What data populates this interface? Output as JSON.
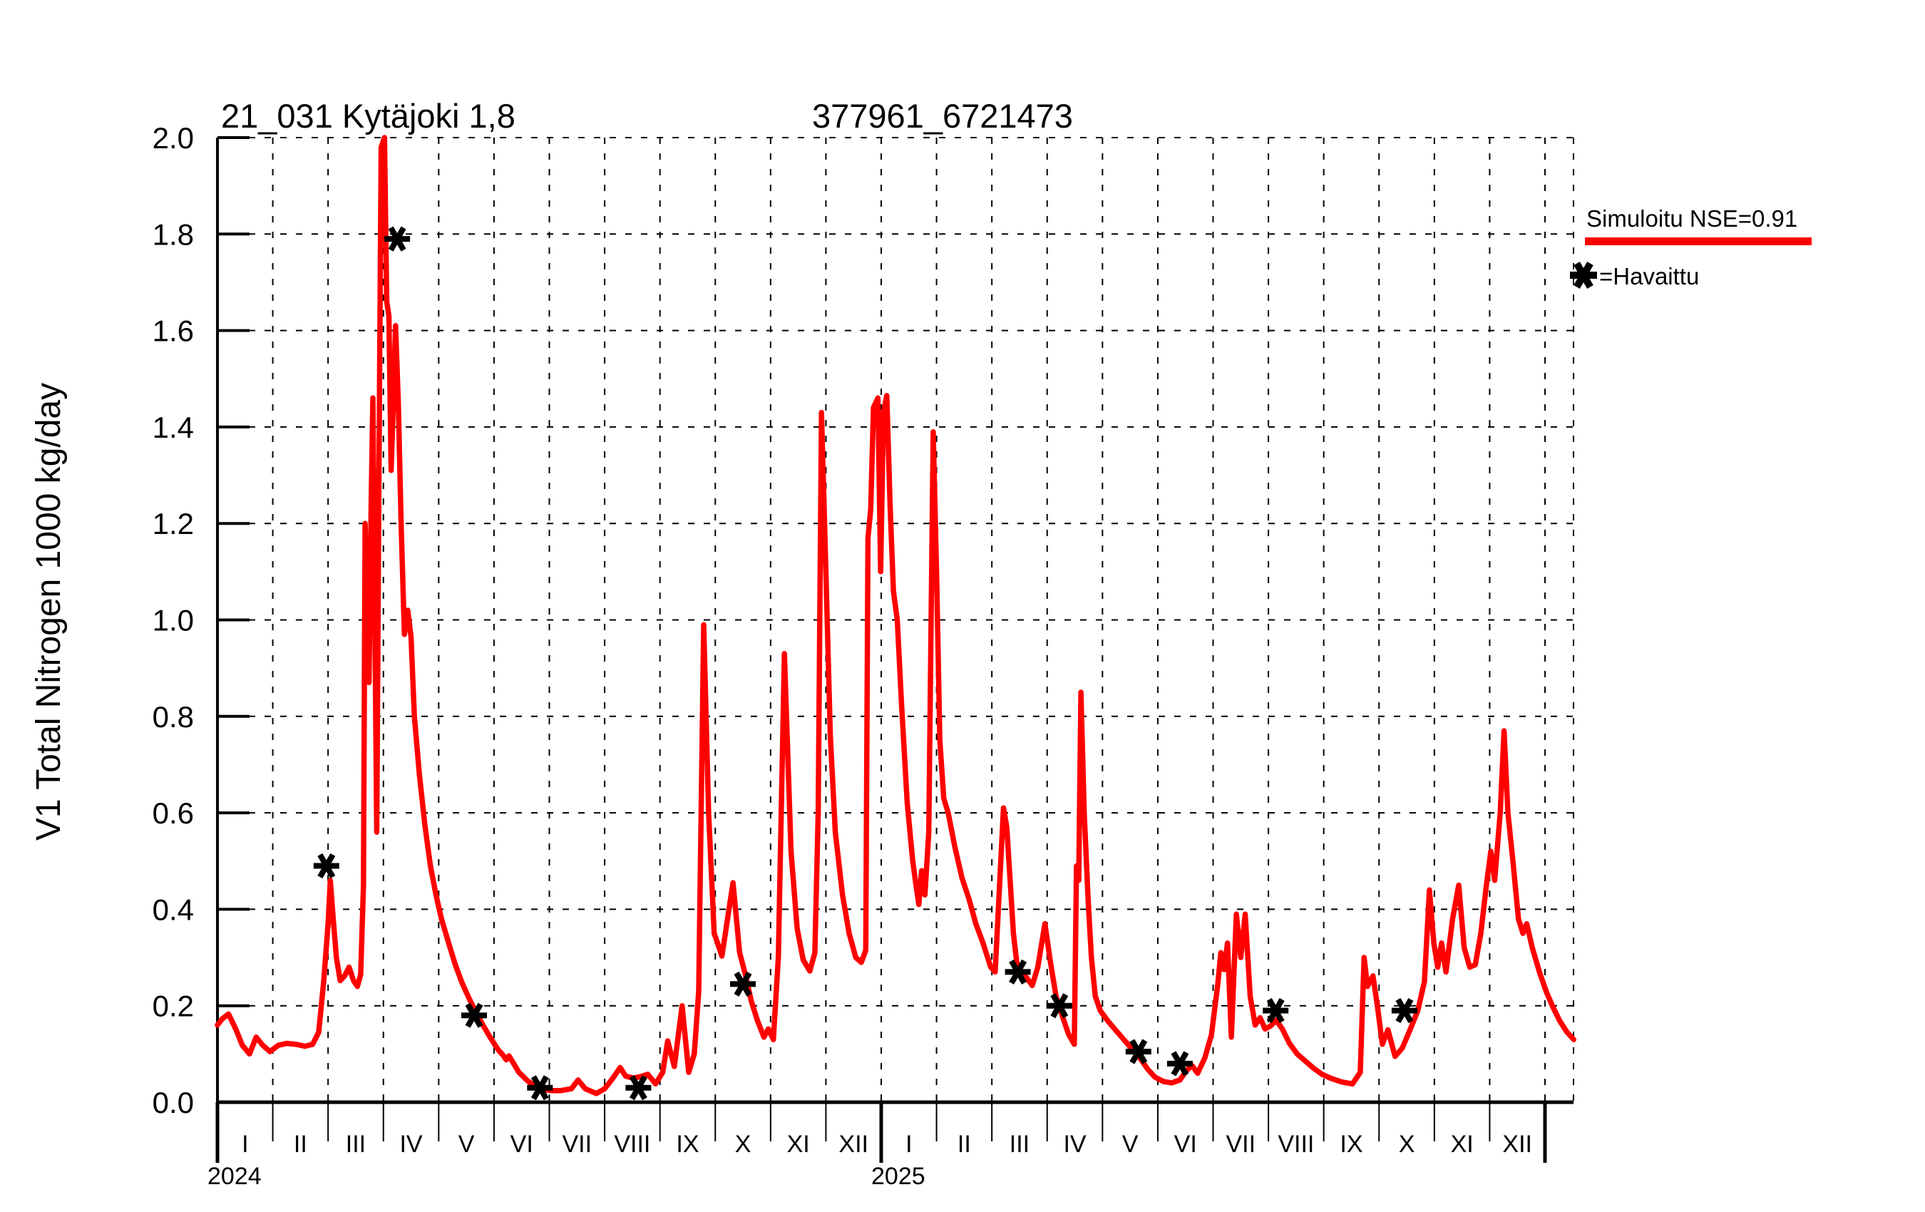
{
  "titles": {
    "station": "21_031 Kytäjoki 1,8",
    "coordinates": "377961_6721473"
  },
  "legend": {
    "simulated_label": "Simuloitu NSE=0.91",
    "observed_label": "=Havaittu",
    "position": "right-top-outside"
  },
  "colors": {
    "simulated": "#ff0000",
    "observed": "#000000",
    "background": "#ffffff",
    "grid": "#000000"
  },
  "chart_data": {
    "type": "line",
    "title": "21_031 Kytäjoki 1,8",
    "subtitle": "377961_6721473",
    "xlabel": "",
    "ylabel": "V1 Total Nitrogen 1000 kg/day",
    "ylim": [
      0.0,
      2.0
    ],
    "y_ticks": [
      0.0,
      0.2,
      0.4,
      0.6,
      0.8,
      1.0,
      1.2,
      1.4,
      1.6,
      1.8,
      2.0
    ],
    "y_tick_labels": [
      "0.0",
      "0.2",
      "0.4",
      "0.6",
      "0.8",
      "1.0",
      "1.2",
      "1.4",
      "1.6",
      "1.8",
      "2.0"
    ],
    "x_unit": "months since 2024-01-01",
    "xlim_months": [
      0,
      24.52
    ],
    "x_month_labels": [
      "I",
      "II",
      "III",
      "IV",
      "V",
      "VI",
      "VII",
      "VIII",
      "IX",
      "X",
      "XI",
      "XII"
    ],
    "x_year_labels": [
      "2024",
      "2025"
    ],
    "grid": true,
    "legend_position": "right-top-outside",
    "series": [
      {
        "name": "Simuloitu NSE=0.91",
        "type": "line",
        "color": "#ff0000",
        "points": [
          [
            0.0,
            0.16
          ],
          [
            0.08,
            0.172
          ],
          [
            0.2,
            0.183
          ],
          [
            0.33,
            0.152
          ],
          [
            0.45,
            0.118
          ],
          [
            0.58,
            0.1
          ],
          [
            0.7,
            0.135
          ],
          [
            0.82,
            0.118
          ],
          [
            0.95,
            0.105
          ],
          [
            1.1,
            0.118
          ],
          [
            1.25,
            0.122
          ],
          [
            1.42,
            0.12
          ],
          [
            1.58,
            0.116
          ],
          [
            1.72,
            0.12
          ],
          [
            1.83,
            0.145
          ],
          [
            1.92,
            0.25
          ],
          [
            2.0,
            0.37
          ],
          [
            2.04,
            0.46
          ],
          [
            2.09,
            0.385
          ],
          [
            2.15,
            0.3
          ],
          [
            2.22,
            0.252
          ],
          [
            2.3,
            0.262
          ],
          [
            2.38,
            0.28
          ],
          [
            2.46,
            0.252
          ],
          [
            2.53,
            0.24
          ],
          [
            2.59,
            0.265
          ],
          [
            2.64,
            0.45
          ],
          [
            2.67,
            1.2
          ],
          [
            2.71,
            1.0
          ],
          [
            2.74,
            0.87
          ],
          [
            2.78,
            1.25
          ],
          [
            2.81,
            1.46
          ],
          [
            2.85,
            0.95
          ],
          [
            2.88,
            0.56
          ],
          [
            2.92,
            1.3
          ],
          [
            2.96,
            1.98
          ],
          [
            3.02,
            2.0
          ],
          [
            3.06,
            1.66
          ],
          [
            3.1,
            1.63
          ],
          [
            3.14,
            1.31
          ],
          [
            3.18,
            1.45
          ],
          [
            3.22,
            1.61
          ],
          [
            3.27,
            1.45
          ],
          [
            3.32,
            1.2
          ],
          [
            3.38,
            0.97
          ],
          [
            3.44,
            1.02
          ],
          [
            3.5,
            0.965
          ],
          [
            3.56,
            0.8
          ],
          [
            3.65,
            0.68
          ],
          [
            3.75,
            0.575
          ],
          [
            3.85,
            0.49
          ],
          [
            3.95,
            0.43
          ],
          [
            4.05,
            0.38
          ],
          [
            4.18,
            0.33
          ],
          [
            4.3,
            0.285
          ],
          [
            4.42,
            0.248
          ],
          [
            4.55,
            0.215
          ],
          [
            4.68,
            0.185
          ],
          [
            4.8,
            0.16
          ],
          [
            4.9,
            0.14
          ],
          [
            5.0,
            0.122
          ],
          [
            5.08,
            0.108
          ],
          [
            5.16,
            0.098
          ],
          [
            5.22,
            0.088
          ],
          [
            5.27,
            0.096
          ],
          [
            5.33,
            0.085
          ],
          [
            5.45,
            0.062
          ],
          [
            5.6,
            0.045
          ],
          [
            5.75,
            0.032
          ],
          [
            5.9,
            0.026
          ],
          [
            6.05,
            0.024
          ],
          [
            6.2,
            0.024
          ],
          [
            6.4,
            0.028
          ],
          [
            6.52,
            0.046
          ],
          [
            6.65,
            0.028
          ],
          [
            6.85,
            0.018
          ],
          [
            7.0,
            0.028
          ],
          [
            7.15,
            0.05
          ],
          [
            7.28,
            0.072
          ],
          [
            7.38,
            0.054
          ],
          [
            7.52,
            0.05
          ],
          [
            7.65,
            0.053
          ],
          [
            7.78,
            0.058
          ],
          [
            7.92,
            0.038
          ],
          [
            8.05,
            0.062
          ],
          [
            8.14,
            0.127
          ],
          [
            8.26,
            0.074
          ],
          [
            8.4,
            0.2
          ],
          [
            8.52,
            0.062
          ],
          [
            8.62,
            0.1
          ],
          [
            8.7,
            0.23
          ],
          [
            8.79,
            0.99
          ],
          [
            8.88,
            0.6
          ],
          [
            8.98,
            0.35
          ],
          [
            9.12,
            0.303
          ],
          [
            9.32,
            0.455
          ],
          [
            9.44,
            0.31
          ],
          [
            9.55,
            0.262
          ],
          [
            9.65,
            0.21
          ],
          [
            9.76,
            0.17
          ],
          [
            9.88,
            0.135
          ],
          [
            9.96,
            0.152
          ],
          [
            10.05,
            0.13
          ],
          [
            10.14,
            0.3
          ],
          [
            10.25,
            0.93
          ],
          [
            10.37,
            0.52
          ],
          [
            10.48,
            0.36
          ],
          [
            10.59,
            0.295
          ],
          [
            10.71,
            0.272
          ],
          [
            10.8,
            0.31
          ],
          [
            10.86,
            0.6
          ],
          [
            10.92,
            1.43
          ],
          [
            11.0,
            1.1
          ],
          [
            11.08,
            0.76
          ],
          [
            11.17,
            0.56
          ],
          [
            11.3,
            0.43
          ],
          [
            11.42,
            0.35
          ],
          [
            11.54,
            0.3
          ],
          [
            11.64,
            0.29
          ],
          [
            11.72,
            0.315
          ],
          [
            11.76,
            1.17
          ],
          [
            11.81,
            1.23
          ],
          [
            11.86,
            1.44
          ],
          [
            11.94,
            1.46
          ],
          [
            11.99,
            1.1
          ],
          [
            12.04,
            1.43
          ],
          [
            12.1,
            1.465
          ],
          [
            12.16,
            1.24
          ],
          [
            12.22,
            1.06
          ],
          [
            12.29,
            1.0
          ],
          [
            12.37,
            0.82
          ],
          [
            12.47,
            0.62
          ],
          [
            12.57,
            0.5
          ],
          [
            12.64,
            0.44
          ],
          [
            12.68,
            0.41
          ],
          [
            12.73,
            0.48
          ],
          [
            12.79,
            0.43
          ],
          [
            12.86,
            0.56
          ],
          [
            12.94,
            1.39
          ],
          [
            13.0,
            1.1
          ],
          [
            13.06,
            0.75
          ],
          [
            13.13,
            0.63
          ],
          [
            13.21,
            0.6
          ],
          [
            13.33,
            0.53
          ],
          [
            13.46,
            0.465
          ],
          [
            13.59,
            0.42
          ],
          [
            13.71,
            0.37
          ],
          [
            13.84,
            0.33
          ],
          [
            13.98,
            0.28
          ],
          [
            14.06,
            0.27
          ],
          [
            14.14,
            0.45
          ],
          [
            14.21,
            0.61
          ],
          [
            14.27,
            0.57
          ],
          [
            14.33,
            0.46
          ],
          [
            14.39,
            0.35
          ],
          [
            14.45,
            0.29
          ],
          [
            14.53,
            0.27
          ],
          [
            14.63,
            0.258
          ],
          [
            14.73,
            0.242
          ],
          [
            14.83,
            0.28
          ],
          [
            14.96,
            0.37
          ],
          [
            15.06,
            0.29
          ],
          [
            15.16,
            0.22
          ],
          [
            15.27,
            0.18
          ],
          [
            15.39,
            0.14
          ],
          [
            15.49,
            0.12
          ],
          [
            15.53,
            0.49
          ],
          [
            15.57,
            0.46
          ],
          [
            15.61,
            0.85
          ],
          [
            15.67,
            0.6
          ],
          [
            15.74,
            0.42
          ],
          [
            15.8,
            0.3
          ],
          [
            15.87,
            0.22
          ],
          [
            15.96,
            0.19
          ],
          [
            16.1,
            0.168
          ],
          [
            16.25,
            0.148
          ],
          [
            16.4,
            0.128
          ],
          [
            16.55,
            0.108
          ],
          [
            16.7,
            0.088
          ],
          [
            16.82,
            0.068
          ],
          [
            16.95,
            0.052
          ],
          [
            17.1,
            0.043
          ],
          [
            17.25,
            0.04
          ],
          [
            17.4,
            0.046
          ],
          [
            17.52,
            0.066
          ],
          [
            17.62,
            0.076
          ],
          [
            17.72,
            0.06
          ],
          [
            17.85,
            0.092
          ],
          [
            17.97,
            0.14
          ],
          [
            18.08,
            0.24
          ],
          [
            18.14,
            0.31
          ],
          [
            18.2,
            0.275
          ],
          [
            18.26,
            0.33
          ],
          [
            18.33,
            0.135
          ],
          [
            18.42,
            0.39
          ],
          [
            18.5,
            0.3
          ],
          [
            18.58,
            0.39
          ],
          [
            18.67,
            0.22
          ],
          [
            18.76,
            0.16
          ],
          [
            18.85,
            0.175
          ],
          [
            18.94,
            0.152
          ],
          [
            19.04,
            0.158
          ],
          [
            19.14,
            0.17
          ],
          [
            19.25,
            0.152
          ],
          [
            19.38,
            0.122
          ],
          [
            19.52,
            0.1
          ],
          [
            19.67,
            0.085
          ],
          [
            19.82,
            0.07
          ],
          [
            19.97,
            0.058
          ],
          [
            20.12,
            0.05
          ],
          [
            20.32,
            0.042
          ],
          [
            20.52,
            0.038
          ],
          [
            20.66,
            0.062
          ],
          [
            20.73,
            0.3
          ],
          [
            20.79,
            0.24
          ],
          [
            20.89,
            0.262
          ],
          [
            20.97,
            0.2
          ],
          [
            21.06,
            0.12
          ],
          [
            21.16,
            0.15
          ],
          [
            21.29,
            0.095
          ],
          [
            21.42,
            0.112
          ],
          [
            21.56,
            0.15
          ],
          [
            21.7,
            0.19
          ],
          [
            21.82,
            0.25
          ],
          [
            21.91,
            0.44
          ],
          [
            21.99,
            0.33
          ],
          [
            22.06,
            0.28
          ],
          [
            22.13,
            0.33
          ],
          [
            22.21,
            0.27
          ],
          [
            22.33,
            0.38
          ],
          [
            22.44,
            0.45
          ],
          [
            22.54,
            0.32
          ],
          [
            22.64,
            0.28
          ],
          [
            22.74,
            0.285
          ],
          [
            22.84,
            0.35
          ],
          [
            22.94,
            0.45
          ],
          [
            23.02,
            0.52
          ],
          [
            23.09,
            0.46
          ],
          [
            23.19,
            0.6
          ],
          [
            23.26,
            0.77
          ],
          [
            23.33,
            0.6
          ],
          [
            23.42,
            0.5
          ],
          [
            23.52,
            0.38
          ],
          [
            23.6,
            0.35
          ],
          [
            23.67,
            0.37
          ],
          [
            23.77,
            0.32
          ],
          [
            23.9,
            0.27
          ],
          [
            24.02,
            0.23
          ],
          [
            24.14,
            0.198
          ],
          [
            24.27,
            0.168
          ],
          [
            24.4,
            0.145
          ],
          [
            24.52,
            0.13
          ]
        ]
      },
      {
        "name": "Havaittu",
        "type": "scatter",
        "marker": "asterisk",
        "color": "#000000",
        "points": [
          [
            1.97,
            0.49
          ],
          [
            3.25,
            1.79
          ],
          [
            4.64,
            0.18
          ],
          [
            5.83,
            0.03
          ],
          [
            7.61,
            0.03
          ],
          [
            9.5,
            0.245
          ],
          [
            14.47,
            0.27
          ],
          [
            15.22,
            0.2
          ],
          [
            16.65,
            0.105
          ],
          [
            17.4,
            0.08
          ],
          [
            19.13,
            0.19
          ],
          [
            21.46,
            0.19
          ]
        ]
      }
    ]
  }
}
